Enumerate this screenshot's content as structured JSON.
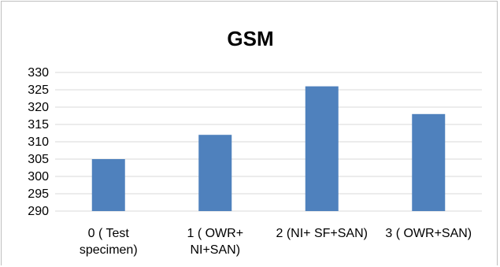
{
  "chart_data": {
    "type": "bar",
    "title": "GSM",
    "categories": [
      [
        "0  ( Test",
        "specimen)"
      ],
      [
        "1 ( OWR+",
        "NI+SAN)"
      ],
      [
        "2 (NI+ SF+SAN)"
      ],
      [
        "3 ( OWR+SAN)"
      ]
    ],
    "values": [
      305,
      312,
      326,
      318
    ],
    "ylim": [
      290,
      330
    ],
    "yticks": [
      290,
      295,
      300,
      305,
      310,
      315,
      320,
      325,
      330
    ],
    "grid": true,
    "bar_color": "#4f81bd",
    "xlabel": "",
    "ylabel": ""
  }
}
